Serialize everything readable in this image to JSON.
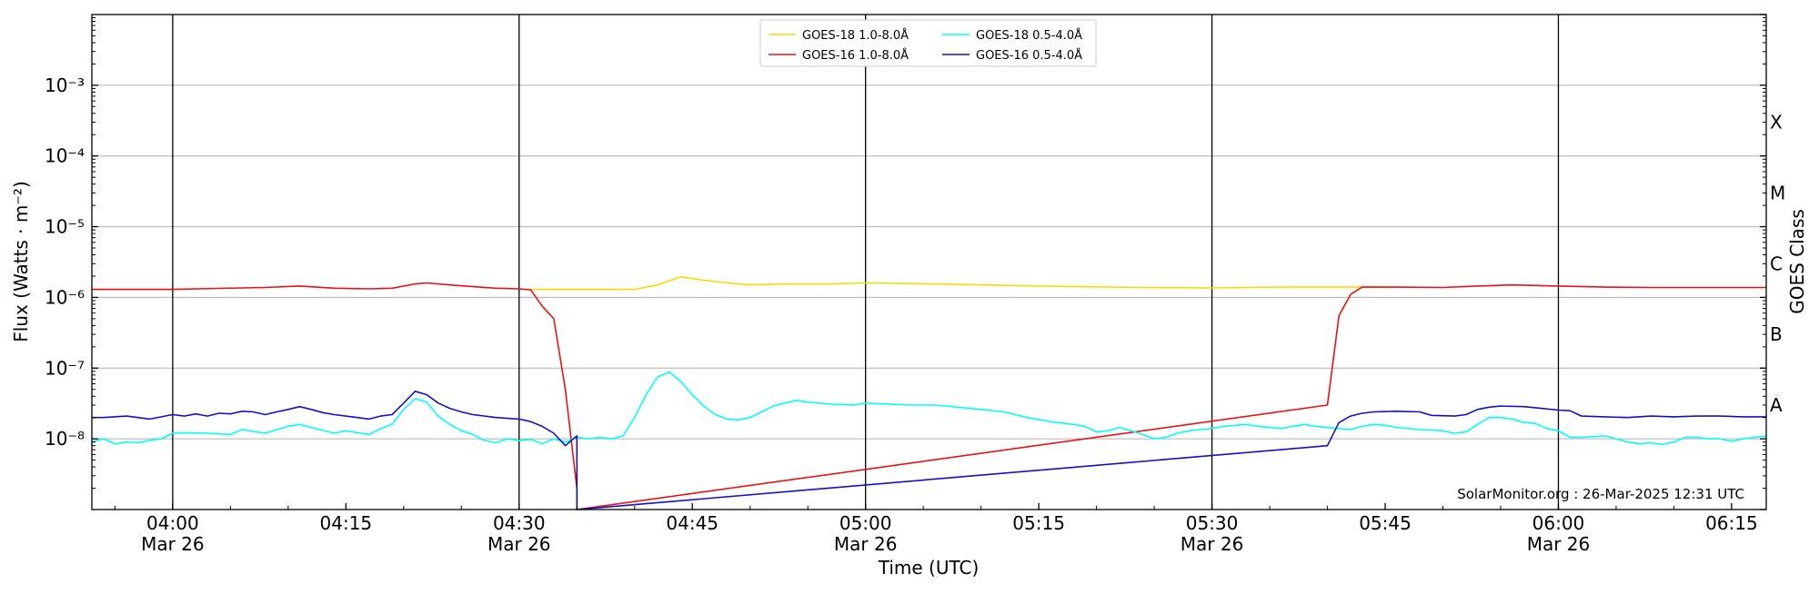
{
  "chart_data": {
    "type": "line",
    "title": "",
    "xlabel": "Time (UTC)",
    "ylabel": "Flux (Watts · m⁻²)",
    "ylabel_right": "GOES Class",
    "yscale": "log",
    "ylim": [
      1e-09,
      0.01
    ],
    "xlim": [
      "03:53",
      "06:18"
    ],
    "y_ticks": [
      {
        "label": "10⁻³",
        "value": 0.001
      },
      {
        "label": "10⁻⁴",
        "value": 0.0001
      },
      {
        "label": "10⁻⁵",
        "value": 1e-05
      },
      {
        "label": "10⁻⁶",
        "value": 1e-06
      },
      {
        "label": "10⁻⁷",
        "value": 1e-07
      },
      {
        "label": "10⁻⁸",
        "value": 1e-08
      }
    ],
    "x_ticks": [
      {
        "time": "04:00",
        "date": "Mar 26"
      },
      {
        "time": "04:15",
        "date": ""
      },
      {
        "time": "04:30",
        "date": "Mar 26"
      },
      {
        "time": "04:45",
        "date": ""
      },
      {
        "time": "05:00",
        "date": "Mar 26"
      },
      {
        "time": "05:15",
        "date": ""
      },
      {
        "time": "05:30",
        "date": "Mar 26"
      },
      {
        "time": "05:45",
        "date": ""
      },
      {
        "time": "06:00",
        "date": "Mar 26"
      },
      {
        "time": "06:15",
        "date": ""
      }
    ],
    "vlines": [
      "04:00",
      "04:30",
      "05:00",
      "05:30",
      "06:00"
    ],
    "goes_classes": [
      {
        "label": "X",
        "value": 0.0003
      },
      {
        "label": "M",
        "value": 3e-05
      },
      {
        "label": "C",
        "value": 3e-06
      },
      {
        "label": "B",
        "value": 3e-07
      },
      {
        "label": "A",
        "value": 3e-08
      }
    ],
    "grid": "horizontal",
    "legend_position": "top-center",
    "annotation": "SolarMonitor.org : 26-Mar-2025 12:31 UTC",
    "series": [
      {
        "name": "GOES-18 1.0-8.0Å",
        "color": "#ffd700",
        "points": [
          [
            "04:31",
            1.3e-06
          ],
          [
            "04:34",
            1.3e-06
          ],
          [
            "04:37",
            1.3e-06
          ],
          [
            "04:40",
            1.3e-06
          ],
          [
            "04:42",
            1.5e-06
          ],
          [
            "04:44",
            1.95e-06
          ],
          [
            "04:46",
            1.75e-06
          ],
          [
            "04:48",
            1.6e-06
          ],
          [
            "04:50",
            1.5e-06
          ],
          [
            "04:53",
            1.55e-06
          ],
          [
            "04:57",
            1.55e-06
          ],
          [
            "05:00",
            1.6e-06
          ],
          [
            "05:06",
            1.55e-06
          ],
          [
            "05:12",
            1.48e-06
          ],
          [
            "05:18",
            1.42e-06
          ],
          [
            "05:24",
            1.38e-06
          ],
          [
            "05:30",
            1.36e-06
          ],
          [
            "05:36",
            1.4e-06
          ],
          [
            "05:42",
            1.4e-06
          ],
          [
            "05:45",
            1.4e-06
          ]
        ]
      },
      {
        "name": "GOES-16 1.0-8.0Å",
        "color": "#ee1111",
        "points": [
          [
            "03:53",
            1.3e-06
          ],
          [
            "03:57",
            1.3e-06
          ],
          [
            "04:00",
            1.3e-06
          ],
          [
            "04:04",
            1.34e-06
          ],
          [
            "04:08",
            1.38e-06
          ],
          [
            "04:11",
            1.45e-06
          ],
          [
            "04:14",
            1.35e-06
          ],
          [
            "04:17",
            1.32e-06
          ],
          [
            "04:19",
            1.35e-06
          ],
          [
            "04:21",
            1.55e-06
          ],
          [
            "04:22",
            1.6e-06
          ],
          [
            "04:24",
            1.5e-06
          ],
          [
            "04:26",
            1.42e-06
          ],
          [
            "04:28",
            1.35e-06
          ],
          [
            "04:30",
            1.32e-06
          ],
          [
            "04:31",
            1.28e-06
          ],
          [
            "04:32",
            7.5e-07
          ],
          [
            "04:33",
            5e-07
          ],
          [
            "04:34",
            5e-08
          ],
          [
            "04:35",
            2e-09
          ],
          [
            "04:35",
            1e-09
          ],
          [
            "05:40",
            3e-08
          ],
          [
            "05:41",
            5.5e-07
          ],
          [
            "05:42",
            1.1e-06
          ],
          [
            "05:43",
            1.4e-06
          ],
          [
            "05:46",
            1.4e-06
          ],
          [
            "05:50",
            1.38e-06
          ],
          [
            "05:53",
            1.45e-06
          ],
          [
            "05:56",
            1.5e-06
          ],
          [
            "06:00",
            1.45e-06
          ],
          [
            "06:04",
            1.4e-06
          ],
          [
            "06:08",
            1.38e-06
          ],
          [
            "06:12",
            1.38e-06
          ],
          [
            "06:16",
            1.38e-06
          ],
          [
            "06:18",
            1.38e-06
          ]
        ]
      },
      {
        "name": "GOES-18 0.5-4.0Å",
        "color": "#00ffff",
        "points": [
          [
            "03:53",
            9e-09
          ],
          [
            "03:54",
            1e-08
          ],
          [
            "03:55",
            8.5e-09
          ],
          [
            "03:56",
            9e-09
          ],
          [
            "03:57",
            8.8e-09
          ],
          [
            "03:58",
            9.5e-09
          ],
          [
            "03:59",
            1e-08
          ],
          [
            "04:00",
            1.2e-08
          ],
          [
            "04:01",
            1.22e-08
          ],
          [
            "04:03",
            1.2e-08
          ],
          [
            "04:05",
            1.15e-08
          ],
          [
            "04:06",
            1.35e-08
          ],
          [
            "04:08",
            1.2e-08
          ],
          [
            "04:10",
            1.5e-08
          ],
          [
            "04:11",
            1.6e-08
          ],
          [
            "04:12",
            1.45e-08
          ],
          [
            "04:14",
            1.2e-08
          ],
          [
            "04:15",
            1.3e-08
          ],
          [
            "04:17",
            1.15e-08
          ],
          [
            "04:18",
            1.4e-08
          ],
          [
            "04:19",
            1.6e-08
          ],
          [
            "04:20",
            2.6e-08
          ],
          [
            "04:21",
            3.7e-08
          ],
          [
            "04:22",
            3.3e-08
          ],
          [
            "04:23",
            2.1e-08
          ],
          [
            "04:24",
            1.6e-08
          ],
          [
            "04:25",
            1.3e-08
          ],
          [
            "04:26",
            1.15e-08
          ],
          [
            "04:27",
            9.5e-09
          ],
          [
            "04:28",
            8.8e-09
          ],
          [
            "04:29",
            1e-08
          ],
          [
            "04:30",
            9.5e-09
          ],
          [
            "04:31",
            9.8e-09
          ],
          [
            "04:32",
            8.5e-09
          ],
          [
            "04:33",
            1e-08
          ],
          [
            "04:34",
            9e-09
          ],
          [
            "04:35",
            1.05e-08
          ],
          [
            "04:36",
            1e-08
          ],
          [
            "04:37",
            1.05e-08
          ],
          [
            "04:38",
            1e-08
          ],
          [
            "04:39",
            1.1e-08
          ],
          [
            "04:40",
            2e-08
          ],
          [
            "04:41",
            4.2e-08
          ],
          [
            "04:42",
            7.5e-08
          ],
          [
            "04:43",
            8.8e-08
          ],
          [
            "04:44",
            6.5e-08
          ],
          [
            "04:45",
            4.2e-08
          ],
          [
            "04:46",
            2.9e-08
          ],
          [
            "04:47",
            2.2e-08
          ],
          [
            "04:48",
            1.9e-08
          ],
          [
            "04:49",
            1.85e-08
          ],
          [
            "04:50",
            2e-08
          ],
          [
            "04:51",
            2.4e-08
          ],
          [
            "04:52",
            2.9e-08
          ],
          [
            "04:53",
            3.2e-08
          ],
          [
            "04:54",
            3.5e-08
          ],
          [
            "04:55",
            3.3e-08
          ],
          [
            "04:57",
            3.1e-08
          ],
          [
            "04:59",
            3e-08
          ],
          [
            "05:00",
            3.2e-08
          ],
          [
            "05:02",
            3.1e-08
          ],
          [
            "05:04",
            3e-08
          ],
          [
            "05:06",
            3e-08
          ],
          [
            "05:08",
            2.8e-08
          ],
          [
            "05:10",
            2.6e-08
          ],
          [
            "05:12",
            2.4e-08
          ],
          [
            "05:14",
            2e-08
          ],
          [
            "05:16",
            1.75e-08
          ],
          [
            "05:18",
            1.6e-08
          ],
          [
            "05:19",
            1.5e-08
          ],
          [
            "05:20",
            1.25e-08
          ],
          [
            "05:21",
            1.3e-08
          ],
          [
            "05:22",
            1.45e-08
          ],
          [
            "05:23",
            1.3e-08
          ],
          [
            "05:24",
            1.15e-08
          ],
          [
            "05:25",
            1e-08
          ],
          [
            "05:26",
            1.05e-08
          ],
          [
            "05:27",
            1.2e-08
          ],
          [
            "05:28",
            1.3e-08
          ],
          [
            "05:29",
            1.35e-08
          ],
          [
            "05:30",
            1.4e-08
          ],
          [
            "05:31",
            1.5e-08
          ],
          [
            "05:32",
            1.55e-08
          ],
          [
            "05:33",
            1.6e-08
          ],
          [
            "05:34",
            1.5e-08
          ],
          [
            "05:35",
            1.45e-08
          ],
          [
            "05:36",
            1.4e-08
          ],
          [
            "05:37",
            1.5e-08
          ],
          [
            "05:38",
            1.6e-08
          ],
          [
            "05:39",
            1.5e-08
          ],
          [
            "05:40",
            1.45e-08
          ],
          [
            "05:41",
            1.4e-08
          ],
          [
            "05:42",
            1.35e-08
          ],
          [
            "05:43",
            1.5e-08
          ],
          [
            "05:44",
            1.6e-08
          ],
          [
            "05:45",
            1.55e-08
          ],
          [
            "05:46",
            1.45e-08
          ],
          [
            "05:48",
            1.35e-08
          ],
          [
            "05:50",
            1.3e-08
          ],
          [
            "05:51",
            1.2e-08
          ],
          [
            "05:52",
            1.25e-08
          ],
          [
            "05:53",
            1.6e-08
          ],
          [
            "05:54",
            2e-08
          ],
          [
            "05:55",
            2e-08
          ],
          [
            "05:56",
            1.9e-08
          ],
          [
            "05:57",
            1.7e-08
          ],
          [
            "05:58",
            1.65e-08
          ],
          [
            "05:59",
            1.4e-08
          ],
          [
            "06:00",
            1.3e-08
          ],
          [
            "06:01",
            1.05e-08
          ],
          [
            "06:02",
            1.05e-08
          ],
          [
            "06:04",
            1.1e-08
          ],
          [
            "06:05",
            1e-08
          ],
          [
            "06:06",
            9e-09
          ],
          [
            "06:07",
            8.5e-09
          ],
          [
            "06:08",
            8.8e-09
          ],
          [
            "06:09",
            8.3e-09
          ],
          [
            "06:10",
            9e-09
          ],
          [
            "06:11",
            1.05e-08
          ],
          [
            "06:12",
            1.05e-08
          ],
          [
            "06:13",
            1e-08
          ],
          [
            "06:14",
            1e-08
          ],
          [
            "06:15",
            9.2e-09
          ],
          [
            "06:16",
            1e-08
          ],
          [
            "06:17",
            1.05e-08
          ],
          [
            "06:18",
            1.1e-08
          ]
        ]
      },
      {
        "name": "GOES-16 0.5-4.0Å",
        "color": "#1111cc",
        "points": [
          [
            "03:53",
            2e-08
          ],
          [
            "03:54",
            2e-08
          ],
          [
            "03:56",
            2.1e-08
          ],
          [
            "03:57",
            2e-08
          ],
          [
            "03:58",
            1.9e-08
          ],
          [
            "04:00",
            2.2e-08
          ],
          [
            "04:01",
            2.1e-08
          ],
          [
            "04:02",
            2.25e-08
          ],
          [
            "04:03",
            2.1e-08
          ],
          [
            "04:04",
            2.3e-08
          ],
          [
            "04:05",
            2.25e-08
          ],
          [
            "04:06",
            2.45e-08
          ],
          [
            "04:07",
            2.4e-08
          ],
          [
            "04:08",
            2.2e-08
          ],
          [
            "04:09",
            2.4e-08
          ],
          [
            "04:10",
            2.6e-08
          ],
          [
            "04:11",
            2.85e-08
          ],
          [
            "04:12",
            2.6e-08
          ],
          [
            "04:13",
            2.35e-08
          ],
          [
            "04:14",
            2.2e-08
          ],
          [
            "04:15",
            2.1e-08
          ],
          [
            "04:16",
            2e-08
          ],
          [
            "04:17",
            1.9e-08
          ],
          [
            "04:18",
            2.1e-08
          ],
          [
            "04:19",
            2.2e-08
          ],
          [
            "04:20",
            3.2e-08
          ],
          [
            "04:21",
            4.7e-08
          ],
          [
            "04:22",
            4.2e-08
          ],
          [
            "04:23",
            3.2e-08
          ],
          [
            "04:24",
            2.7e-08
          ],
          [
            "04:25",
            2.4e-08
          ],
          [
            "04:26",
            2.2e-08
          ],
          [
            "04:28",
            2e-08
          ],
          [
            "04:29",
            1.95e-08
          ],
          [
            "04:30",
            1.9e-08
          ],
          [
            "04:31",
            1.75e-08
          ],
          [
            "04:32",
            1.5e-08
          ],
          [
            "04:33",
            1.2e-08
          ],
          [
            "04:34",
            8e-09
          ],
          [
            "04:35",
            1.1e-08
          ],
          [
            "04:35",
            1e-09
          ],
          [
            "05:40",
            8e-09
          ],
          [
            "05:41",
            1.7e-08
          ],
          [
            "05:42",
            2.1e-08
          ],
          [
            "05:43",
            2.3e-08
          ],
          [
            "05:44",
            2.4e-08
          ],
          [
            "05:46",
            2.45e-08
          ],
          [
            "05:48",
            2.4e-08
          ],
          [
            "05:49",
            2.15e-08
          ],
          [
            "05:51",
            2.1e-08
          ],
          [
            "05:52",
            2.2e-08
          ],
          [
            "05:53",
            2.6e-08
          ],
          [
            "05:54",
            2.8e-08
          ],
          [
            "05:55",
            2.9e-08
          ],
          [
            "05:57",
            2.85e-08
          ],
          [
            "05:58",
            2.75e-08
          ],
          [
            "06:00",
            2.55e-08
          ],
          [
            "06:01",
            2.5e-08
          ],
          [
            "06:02",
            2.1e-08
          ],
          [
            "06:04",
            2.05e-08
          ],
          [
            "06:06",
            2e-08
          ],
          [
            "06:08",
            2.1e-08
          ],
          [
            "06:10",
            2.05e-08
          ],
          [
            "06:12",
            2.1e-08
          ],
          [
            "06:14",
            2.1e-08
          ],
          [
            "06:16",
            2.05e-08
          ],
          [
            "06:18",
            2.05e-08
          ]
        ]
      }
    ]
  }
}
